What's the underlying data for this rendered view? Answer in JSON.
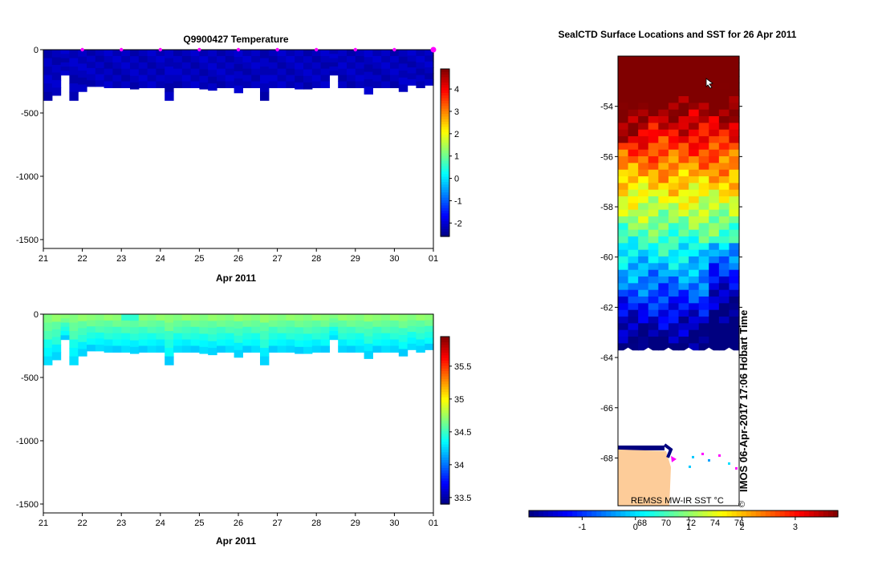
{
  "chart_data": [
    {
      "type": "heatmap",
      "title": "Q9900427  Temperature",
      "xlabel": "Apr 2011",
      "x_tick_labels": [
        "21",
        "22",
        "23",
        "24",
        "25",
        "26",
        "27",
        "28",
        "29",
        "30",
        "01"
      ],
      "y_tick_values": [
        0,
        -500,
        -1000,
        -1500
      ],
      "y_tick_labels": [
        "0",
        "-500",
        "-1000",
        "-1500"
      ],
      "ylim": [
        -1570,
        0
      ],
      "colorbar": {
        "range": [
          -2.6,
          4.9
        ],
        "tick_values": [
          -2,
          -1,
          0,
          1,
          2,
          3,
          4
        ],
        "tick_labels": [
          "-2",
          "-1",
          "0",
          "1",
          "2",
          "3",
          "4"
        ]
      },
      "profile_depths_m": [
        -400,
        -360,
        -200,
        -400,
        -330,
        -290,
        -290,
        -300,
        -300,
        -300,
        -310,
        -300,
        -300,
        -300,
        -400,
        -300,
        -300,
        -300,
        -310,
        -320,
        -300,
        -300,
        -340,
        -300,
        -300,
        -400,
        -300,
        -300,
        -300,
        -310,
        -310,
        -300,
        -300,
        -200,
        -300,
        -300,
        -300,
        -350,
        -300,
        -300,
        -300,
        -330,
        -280,
        -300,
        -280
      ],
      "surface_markers_day": [
        22,
        23,
        24,
        25,
        26,
        27,
        28,
        29,
        30,
        31
      ]
    },
    {
      "type": "heatmap",
      "title": "",
      "xlabel": "Apr 2011",
      "x_tick_labels": [
        "21",
        "22",
        "23",
        "24",
        "25",
        "26",
        "27",
        "28",
        "29",
        "30",
        "01"
      ],
      "y_tick_values": [
        0,
        -500,
        -1000,
        -1500
      ],
      "y_tick_labels": [
        "0",
        "-500",
        "-1000",
        "-1500"
      ],
      "ylim": [
        -1570,
        0
      ],
      "colorbar": {
        "range": [
          33.4,
          35.95
        ],
        "tick_values": [
          33.5,
          34,
          34.5,
          35,
          35.5
        ],
        "tick_labels": [
          "33.5",
          "34",
          "34.5",
          "35",
          "35.5"
        ]
      },
      "profile_depths_m": [
        -400,
        -360,
        -200,
        -400,
        -330,
        -290,
        -290,
        -300,
        -300,
        -300,
        -310,
        -300,
        -300,
        -300,
        -400,
        -300,
        -300,
        -300,
        -310,
        -320,
        -300,
        -300,
        -340,
        -300,
        -300,
        -400,
        -300,
        -300,
        -300,
        -310,
        -310,
        -300,
        -300,
        -200,
        -300,
        -300,
        -300,
        -350,
        -300,
        -300,
        -300,
        -330,
        -280,
        -300,
        -280
      ]
    },
    {
      "type": "heatmap",
      "title": "SealCTD Surface Locations and SST for 26 Apr 2011",
      "y_tick_values": [
        -54,
        -56,
        -58,
        -60,
        -62,
        -64,
        -66,
        -68
      ],
      "y_tick_labels": [
        "-54",
        "-56",
        "-58",
        "-60",
        "-62",
        "-64",
        "-66",
        "-68"
      ],
      "ylim": [
        -69.9,
        -52.0
      ],
      "colorbar": {
        "range": [
          -2.0,
          3.8
        ],
        "tick_values": [
          -1,
          0,
          1,
          2,
          3
        ],
        "tick_labels": [
          "-1",
          "0",
          "1",
          "2",
          "3"
        ],
        "secondary_labels": [
          "68",
          "70",
          "72",
          "74",
          "76"
        ]
      },
      "footer_note": "REMSS MW-IR SST °C",
      "side_note": "IMOS 06-Apr-2017 17:06 Hobart Time",
      "copyright_mark": "©"
    }
  ]
}
